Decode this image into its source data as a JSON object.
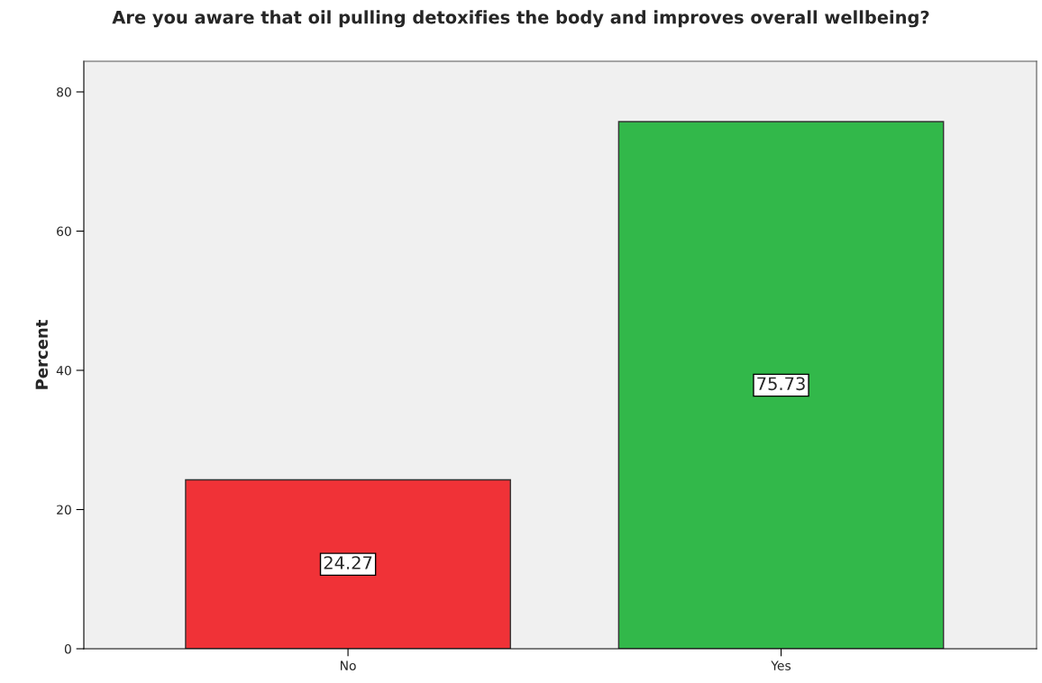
{
  "chart_data": {
    "type": "bar",
    "title": "Are you aware that oil pulling detoxifies the body and improves overall wellbeing?",
    "ylabel": "Percent",
    "categories": [
      "No",
      "Yes"
    ],
    "values": [
      24.27,
      75.73
    ],
    "colors": [
      "#f03237",
      "#32b84a"
    ],
    "ylim": [
      0,
      84.4
    ],
    "yticks": [
      0,
      20,
      40,
      60,
      80
    ],
    "grid": false,
    "data_labels": true
  }
}
